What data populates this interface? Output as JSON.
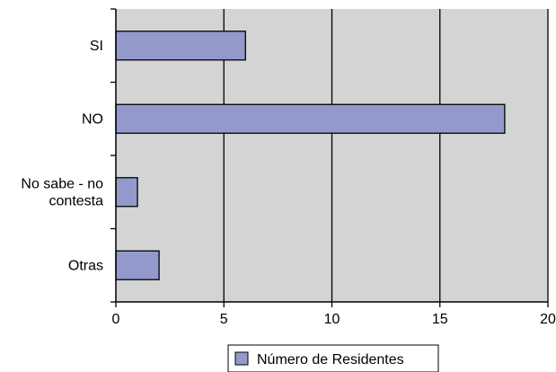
{
  "chart_data": {
    "type": "bar",
    "orientation": "horizontal",
    "categories": [
      "SI",
      "NO",
      "No sabe - no contesta",
      "Otras"
    ],
    "category_label_lines": [
      [
        "SI"
      ],
      [
        "NO"
      ],
      [
        "No sabe - no",
        "contesta"
      ],
      [
        "Otras"
      ]
    ],
    "series": [
      {
        "name": "Número de Residentes",
        "values": [
          6,
          18,
          1,
          2
        ]
      }
    ],
    "xlim": [
      0,
      20
    ],
    "x_ticks": [
      "0",
      "5",
      "10",
      "15",
      "20"
    ],
    "grid": "vertical",
    "legend_position": "bottom",
    "colors": {
      "plot_background": "#d4d4d4",
      "bar_fill": "#9499cc",
      "bar_stroke": "#000000",
      "grid": "#000000"
    }
  }
}
